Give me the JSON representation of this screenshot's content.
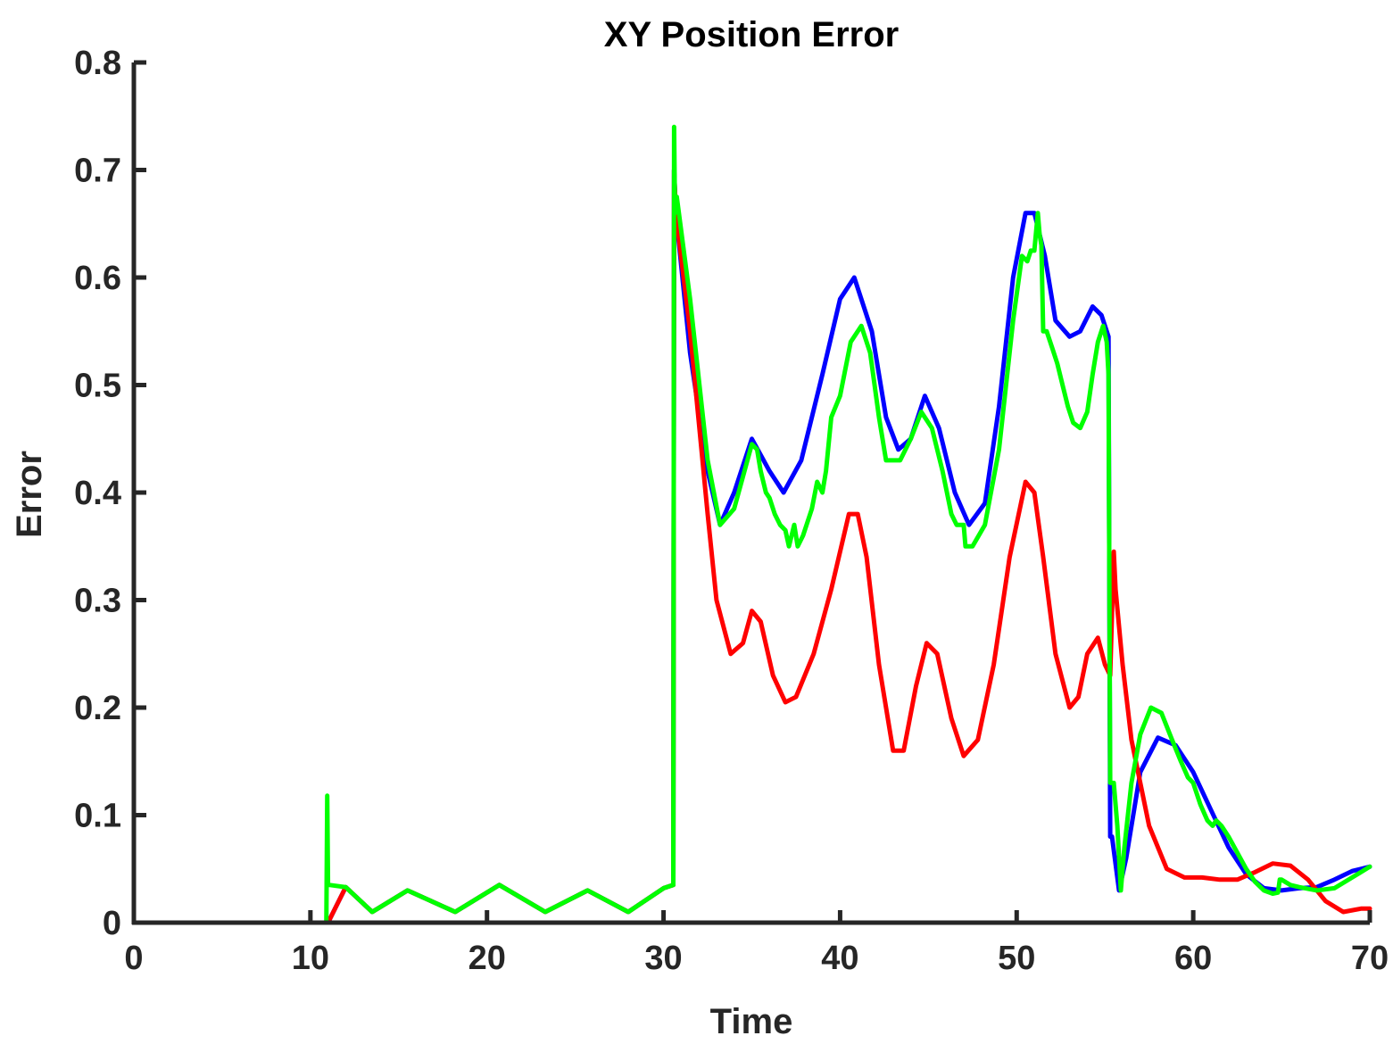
{
  "chart_data": {
    "type": "line",
    "title": "XY Position Error",
    "xlabel": "Time",
    "ylabel": "Error",
    "xlim": [
      0,
      70
    ],
    "ylim": [
      0,
      0.8
    ],
    "xticks": [
      0,
      10,
      20,
      30,
      40,
      50,
      60,
      70
    ],
    "xtick_labels": [
      "0",
      "10",
      "20",
      "30",
      "40",
      "50",
      "60",
      "70"
    ],
    "yticks": [
      0,
      0.1,
      0.2,
      0.3,
      0.4,
      0.5,
      0.6,
      0.7,
      0.8
    ],
    "ytick_labels": [
      "0",
      "0.1",
      "0.2",
      "0.3",
      "0.4",
      "0.5",
      "0.6",
      "0.7",
      "0.8"
    ],
    "grid": false,
    "legend": "none",
    "series": [
      {
        "color": "#0000ff",
        "x": [
          1.0,
          10.9,
          11.0,
          12.0,
          13.5,
          15.5,
          18.2,
          20.7,
          23.3,
          25.7,
          28.0,
          30.0,
          30.55,
          30.6,
          30.7,
          31.5,
          32.5,
          33.2,
          34.0,
          35.0,
          36.0,
          36.8,
          37.8,
          39.0,
          40.0,
          40.8,
          41.8,
          42.6,
          43.3,
          44.0,
          44.8,
          45.6,
          46.5,
          47.3,
          48.2,
          49.0,
          49.8,
          50.5,
          51.0,
          51.6,
          52.2,
          53.0,
          53.6,
          54.3,
          54.8,
          55.2,
          55.3,
          55.4,
          55.8,
          56.2,
          57.0,
          58.0,
          59.0,
          60.0,
          61.0,
          62.0,
          63.0,
          64.0,
          65.0,
          66.0,
          67.0,
          68.0,
          69.0,
          70.0
        ],
        "y": [
          0.0,
          0.0,
          0.0,
          0.033,
          0.01,
          0.03,
          0.01,
          0.035,
          0.01,
          0.03,
          0.01,
          0.032,
          0.035,
          0.7,
          0.66,
          0.53,
          0.42,
          0.37,
          0.4,
          0.45,
          0.42,
          0.4,
          0.43,
          0.51,
          0.58,
          0.6,
          0.55,
          0.47,
          0.44,
          0.45,
          0.49,
          0.46,
          0.4,
          0.37,
          0.39,
          0.48,
          0.6,
          0.66,
          0.66,
          0.62,
          0.56,
          0.545,
          0.55,
          0.573,
          0.565,
          0.545,
          0.08,
          0.08,
          0.03,
          0.06,
          0.14,
          0.172,
          0.165,
          0.14,
          0.105,
          0.07,
          0.045,
          0.032,
          0.03,
          0.032,
          0.033,
          0.04,
          0.048,
          0.052
        ]
      },
      {
        "color": "#ff0000",
        "x": [
          1.0,
          10.9,
          11.0,
          12.0,
          13.5,
          15.5,
          18.2,
          20.7,
          23.3,
          25.7,
          28.0,
          30.0,
          30.55,
          30.6,
          30.7,
          31.5,
          32.5,
          33.0,
          33.8,
          34.5,
          35.0,
          35.5,
          36.2,
          36.9,
          37.5,
          38.5,
          39.5,
          40.5,
          41.0,
          41.5,
          42.2,
          43.0,
          43.6,
          44.3,
          44.9,
          45.5,
          46.3,
          47.0,
          47.8,
          48.7,
          49.6,
          50.5,
          51.0,
          51.5,
          52.2,
          53.0,
          53.5,
          54.0,
          54.6,
          55.0,
          55.3,
          55.5,
          55.6,
          56.0,
          56.5,
          57.5,
          58.5,
          59.5,
          60.5,
          61.5,
          62.5,
          63.5,
          64.5,
          65.5,
          66.5,
          67.5,
          68.5,
          69.5,
          70.0
        ],
        "y": [
          0.0,
          0.0,
          0.0,
          0.033,
          0.01,
          0.03,
          0.01,
          0.035,
          0.01,
          0.03,
          0.01,
          0.032,
          0.035,
          0.7,
          0.66,
          0.55,
          0.38,
          0.3,
          0.25,
          0.26,
          0.29,
          0.28,
          0.23,
          0.205,
          0.21,
          0.25,
          0.31,
          0.38,
          0.38,
          0.34,
          0.24,
          0.16,
          0.16,
          0.22,
          0.26,
          0.25,
          0.19,
          0.155,
          0.17,
          0.24,
          0.34,
          0.41,
          0.4,
          0.34,
          0.25,
          0.2,
          0.21,
          0.25,
          0.265,
          0.24,
          0.23,
          0.345,
          0.31,
          0.24,
          0.17,
          0.09,
          0.05,
          0.042,
          0.042,
          0.04,
          0.04,
          0.047,
          0.055,
          0.053,
          0.04,
          0.02,
          0.01,
          0.013,
          0.013
        ]
      },
      {
        "color": "#00ff00",
        "x": [
          1.0,
          10.9,
          10.95,
          11.0,
          11.1,
          12.0,
          13.5,
          15.5,
          18.2,
          20.7,
          23.3,
          25.7,
          28.0,
          30.0,
          30.55,
          30.6,
          30.65,
          30.75,
          31.5,
          32.5,
          33.2,
          34.0,
          35.0,
          35.3,
          35.5,
          35.8,
          36.0,
          36.3,
          36.6,
          36.9,
          37.1,
          37.4,
          37.6,
          37.9,
          38.4,
          38.7,
          39.0,
          39.2,
          39.5,
          40.0,
          40.6,
          41.2,
          41.7,
          42.2,
          42.6,
          43.0,
          43.4,
          44.0,
          44.6,
          45.2,
          45.8,
          46.3,
          46.6,
          47.0,
          47.1,
          47.5,
          48.2,
          49.0,
          49.8,
          50.3,
          50.6,
          50.8,
          51.0,
          51.2,
          51.3,
          51.4,
          51.5,
          51.7,
          52.0,
          52.3,
          52.6,
          52.9,
          53.2,
          53.6,
          54.0,
          54.3,
          54.6,
          54.9,
          55.1,
          55.2,
          55.3,
          55.5,
          55.7,
          55.9,
          56.1,
          56.5,
          57.0,
          57.6,
          58.2,
          58.8,
          59.3,
          59.7,
          60.0,
          60.4,
          60.8,
          61.1,
          61.3,
          61.6,
          62.0,
          62.5,
          63.0,
          63.5,
          64.0,
          64.5,
          64.8,
          64.9,
          65.0,
          65.5,
          66.0,
          67.0,
          68.0,
          69.0,
          70.0
        ],
        "y": [
          0.0,
          0.0,
          0.118,
          0.035,
          0.035,
          0.033,
          0.01,
          0.03,
          0.01,
          0.035,
          0.01,
          0.03,
          0.01,
          0.032,
          0.035,
          0.74,
          0.66,
          0.675,
          0.58,
          0.43,
          0.37,
          0.385,
          0.445,
          0.44,
          0.42,
          0.4,
          0.395,
          0.38,
          0.37,
          0.365,
          0.35,
          0.37,
          0.35,
          0.36,
          0.385,
          0.41,
          0.4,
          0.42,
          0.47,
          0.49,
          0.54,
          0.555,
          0.53,
          0.47,
          0.43,
          0.43,
          0.43,
          0.45,
          0.475,
          0.46,
          0.42,
          0.38,
          0.37,
          0.37,
          0.35,
          0.35,
          0.37,
          0.44,
          0.56,
          0.62,
          0.615,
          0.625,
          0.625,
          0.66,
          0.64,
          0.63,
          0.55,
          0.55,
          0.535,
          0.52,
          0.5,
          0.48,
          0.465,
          0.46,
          0.475,
          0.51,
          0.54,
          0.555,
          0.54,
          0.51,
          0.13,
          0.13,
          0.09,
          0.03,
          0.07,
          0.13,
          0.175,
          0.2,
          0.195,
          0.17,
          0.15,
          0.135,
          0.13,
          0.11,
          0.095,
          0.09,
          0.095,
          0.09,
          0.08,
          0.065,
          0.05,
          0.038,
          0.03,
          0.027,
          0.028,
          0.04,
          0.04,
          0.035,
          0.033,
          0.03,
          0.032,
          0.042,
          0.052
        ]
      }
    ]
  }
}
